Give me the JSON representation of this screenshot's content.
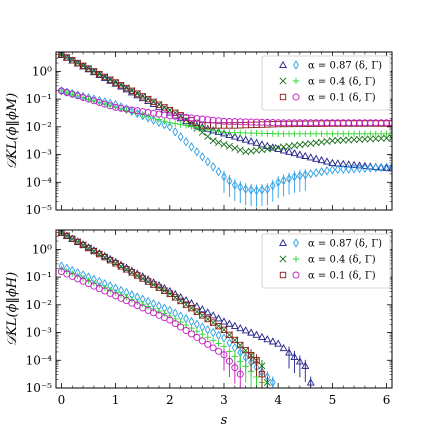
{
  "colors": {
    "navy": "#1f1f8c",
    "skyblue": "#2b9fe6",
    "darkgreen": "#1a6e1a",
    "lime": "#2fd62f",
    "maroon": "#8b1a1a",
    "magenta": "#c41ac4"
  },
  "chart_data": [
    {
      "type": "scatter",
      "panel": "top",
      "ylabel": "𝒟KL(ϕ‖ϕM)",
      "xlabel": "",
      "xlim": [
        -0.1,
        6.1
      ],
      "ylim_log10": [
        -5,
        0.7
      ],
      "yscale": "log",
      "x_ticks": [
        0,
        1,
        2,
        3,
        4,
        5,
        6
      ],
      "x_ticklabels_shown": false,
      "y_ticks": [
        "10⁰",
        "10⁻¹",
        "10⁻²",
        "10⁻³",
        "10⁻⁴",
        "10⁻⁵"
      ],
      "y_tick_exponents": [
        0,
        -1,
        -2,
        -3,
        -4,
        -5
      ],
      "legend": {
        "placement": "top-right",
        "entries": [
          {
            "markers": [
              "triangle",
              "diamond"
            ],
            "colors": [
              "navy",
              "skyblue"
            ],
            "label": "α = 0.87 (δ, Γ)"
          },
          {
            "markers": [
              "x",
              "plus"
            ],
            "colors": [
              "darkgreen",
              "lime"
            ],
            "label": "α = 0.4 (δ, Γ)"
          },
          {
            "markers": [
              "square",
              "circle"
            ],
            "colors": [
              "maroon",
              "magenta"
            ],
            "label": "α = 0.1 (δ, Γ)"
          }
        ]
      },
      "series": [
        {
          "alpha": 0.87,
          "kind": "δ",
          "marker": "triangle",
          "color": "navy",
          "step": 0.1,
          "points_log10": [
            [
              0,
              0.6
            ],
            [
              2.4,
              -1.9
            ],
            [
              4,
              -2.8
            ],
            [
              5,
              -3.3
            ],
            [
              6.1,
              -3.5
            ]
          ]
        },
        {
          "alpha": 0.87,
          "kind": "Γ",
          "marker": "diamond",
          "color": "skyblue",
          "step": 0.1,
          "points_log10": [
            [
              0,
              -0.7
            ],
            [
              1,
              -1.2
            ],
            [
              2,
              -2
            ],
            [
              2.5,
              -2.9
            ],
            [
              3,
              -3.8
            ],
            [
              3.2,
              -4.1
            ],
            [
              3.4,
              -4.25
            ],
            [
              3.6,
              -4.3
            ],
            [
              3.8,
              -4.25
            ],
            [
              4,
              -4.0
            ],
            [
              4.3,
              -3.8
            ],
            [
              5,
              -3.55
            ],
            [
              6.1,
              -3.45
            ]
          ]
        },
        {
          "alpha": 0.4,
          "kind": "δ",
          "marker": "x",
          "color": "darkgreen",
          "step": 0.1,
          "points_log10": [
            [
              0,
              0.6
            ],
            [
              2.2,
              -1.6
            ],
            [
              2.8,
              -2.5
            ],
            [
              3.4,
              -2.9
            ],
            [
              4,
              -2.75
            ],
            [
              5,
              -2.5
            ],
            [
              6.1,
              -2.4
            ]
          ]
        },
        {
          "alpha": 0.4,
          "kind": "Γ",
          "marker": "plus",
          "color": "lime",
          "step": 0.1,
          "points_log10": [
            [
              0,
              -0.7
            ],
            [
              1,
              -1.3
            ],
            [
              2,
              -1.85
            ],
            [
              2.6,
              -2.05
            ],
            [
              3,
              -2.2
            ],
            [
              4,
              -2.25
            ],
            [
              5,
              -2.25
            ],
            [
              6.1,
              -2.25
            ]
          ]
        },
        {
          "alpha": 0.1,
          "kind": "δ",
          "marker": "square",
          "color": "maroon",
          "step": 0.1,
          "points_log10": [
            [
              0,
              0.6
            ],
            [
              2,
              -1.4
            ],
            [
              2.6,
              -1.95
            ],
            [
              3.2,
              -1.95
            ],
            [
              4,
              -1.9
            ],
            [
              5,
              -1.88
            ],
            [
              6.1,
              -1.88
            ]
          ]
        },
        {
          "alpha": 0.1,
          "kind": "Γ",
          "marker": "circle",
          "color": "magenta",
          "step": 0.1,
          "points_log10": [
            [
              0,
              -0.7
            ],
            [
              1,
              -1.3
            ],
            [
              2,
              -1.6
            ],
            [
              3,
              -1.8
            ],
            [
              4,
              -1.85
            ],
            [
              5,
              -1.85
            ],
            [
              6.1,
              -1.85
            ]
          ]
        }
      ]
    },
    {
      "type": "scatter",
      "panel": "bottom",
      "ylabel": "𝒟KL(ϕ‖ϕH)",
      "xlabel": "s",
      "xlim": [
        -0.1,
        6.1
      ],
      "ylim_log10": [
        -5,
        0.7
      ],
      "yscale": "log",
      "x_ticks": [
        0,
        1,
        2,
        3,
        4,
        5,
        6
      ],
      "x_ticklabels": [
        "0",
        "1",
        "2",
        "3",
        "4",
        "5",
        "6"
      ],
      "y_ticks": [
        "10⁰",
        "10⁻¹",
        "10⁻²",
        "10⁻³",
        "10⁻⁴",
        "10⁻⁵"
      ],
      "y_tick_exponents": [
        0,
        -1,
        -2,
        -3,
        -4,
        -5
      ],
      "legend": {
        "placement": "top-right",
        "entries": [
          {
            "markers": [
              "triangle",
              "diamond"
            ],
            "colors": [
              "navy",
              "skyblue"
            ],
            "label": "α = 0.87 (δ, Γ)"
          },
          {
            "markers": [
              "x",
              "plus"
            ],
            "colors": [
              "darkgreen",
              "lime"
            ],
            "label": "α = 0.4 (δ, Γ)"
          },
          {
            "markers": [
              "square",
              "circle"
            ],
            "colors": [
              "maroon",
              "magenta"
            ],
            "label": "α = 0.1 (δ, Γ)"
          }
        ]
      },
      "series": [
        {
          "alpha": 0.87,
          "kind": "δ",
          "marker": "triangle",
          "color": "navy",
          "step": 0.1,
          "points_log10": [
            [
              0,
              0.6
            ],
            [
              2,
              -1.5
            ],
            [
              3,
              -2.6
            ],
            [
              4,
              -3.4
            ],
            [
              4.5,
              -4.2
            ],
            [
              4.6,
              -4.8
            ]
          ]
        },
        {
          "alpha": 0.87,
          "kind": "Γ",
          "marker": "diamond",
          "color": "skyblue",
          "step": 0.1,
          "points_log10": [
            [
              0,
              -0.6
            ],
            [
              2,
              -2.2
            ],
            [
              3,
              -3.2
            ],
            [
              3.8,
              -4.6
            ],
            [
              3.9,
              -4.8
            ]
          ]
        },
        {
          "alpha": 0.4,
          "kind": "δ",
          "marker": "x",
          "color": "darkgreen",
          "step": 0.1,
          "points_log10": [
            [
              0,
              0.6
            ],
            [
              2,
              -1.6
            ],
            [
              3,
              -2.9
            ],
            [
              3.7,
              -4.2
            ],
            [
              3.8,
              -4.8
            ]
          ]
        },
        {
          "alpha": 0.4,
          "kind": "Γ",
          "marker": "plus",
          "color": "lime",
          "step": 0.1,
          "points_log10": [
            [
              0,
              -0.7
            ],
            [
              2,
              -2.4
            ],
            [
              3,
              -3.5
            ],
            [
              3.5,
              -4.4
            ],
            [
              3.7,
              -4.8
            ]
          ]
        },
        {
          "alpha": 0.1,
          "kind": "δ",
          "marker": "square",
          "color": "maroon",
          "step": 0.1,
          "points_log10": [
            [
              0,
              0.6
            ],
            [
              2,
              -1.6
            ],
            [
              3,
              -2.9
            ],
            [
              3.6,
              -4.0
            ],
            [
              3.7,
              -4.5
            ]
          ]
        },
        {
          "alpha": 0.1,
          "kind": "Γ",
          "marker": "circle",
          "color": "magenta",
          "step": 0.1,
          "points_log10": [
            [
              0,
              -0.8
            ],
            [
              2,
              -2.55
            ],
            [
              3,
              -3.8
            ],
            [
              3.3,
              -4.5
            ]
          ]
        }
      ]
    }
  ]
}
